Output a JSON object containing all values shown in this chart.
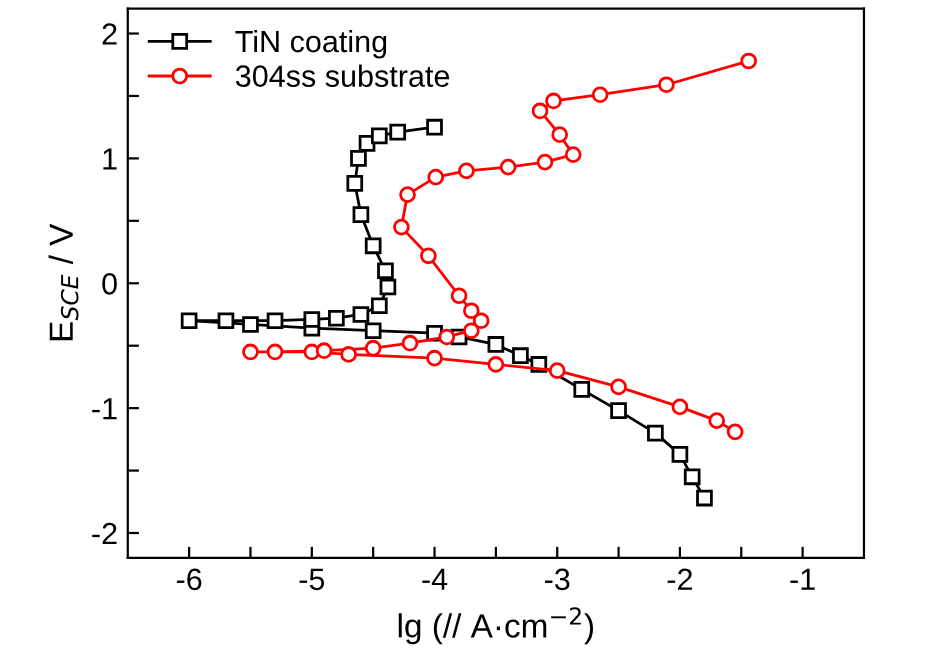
{
  "chart_data": {
    "type": "line",
    "xlabel": "lg (// A·cm$^{−2}$)",
    "ylabel": "E$_{SCE}$ / V",
    "xlim": [
      -6.5,
      -0.5
    ],
    "ylim": [
      -2.2,
      2.2
    ],
    "xticks": [
      -6,
      {
        "value": -5.5,
        "label": null
      },
      -5,
      {
        "value": -4.5,
        "label": null
      },
      -4,
      {
        "value": -3.5,
        "label": null
      },
      -3,
      {
        "value": -2.5,
        "label": null
      },
      -2,
      {
        "value": -1.5,
        "label": null
      },
      -1
    ],
    "yticks": [
      -2,
      {
        "value": -1.5,
        "label": null
      },
      -1,
      {
        "value": -0.5,
        "label": null
      },
      0,
      {
        "value": 0.5,
        "label": null
      },
      1,
      {
        "value": 1.5,
        "label": null
      },
      2
    ],
    "legend": "top left",
    "grid": false,
    "series": [
      {
        "name": "TiN coating",
        "color": "#000000",
        "marker": "square",
        "x": [
          -1.8,
          -1.9,
          -2.0,
          -2.2,
          -2.5,
          -2.8,
          -3.15,
          -3.3,
          -3.5,
          -3.8,
          -4.0,
          -4.5,
          -5.0,
          -5.5,
          -6.0,
          -5.7,
          -5.3,
          -5.0,
          -4.8,
          -4.6,
          -4.45,
          -4.38,
          -4.4,
          -4.5,
          -4.6,
          -4.65,
          -4.62,
          -4.55,
          -4.45,
          -4.3,
          -4.0
        ],
        "values": [
          -1.72,
          -1.55,
          -1.37,
          -1.2,
          -1.02,
          -0.85,
          -0.65,
          -0.58,
          -0.49,
          -0.43,
          -0.4,
          -0.38,
          -0.36,
          -0.33,
          -0.3,
          -0.3,
          -0.3,
          -0.29,
          -0.28,
          -0.25,
          -0.18,
          -0.03,
          0.1,
          0.3,
          0.55,
          0.8,
          1.0,
          1.12,
          1.18,
          1.21,
          1.25
        ]
      },
      {
        "name": "304ss substrate",
        "color": "#ff0000",
        "marker": "circle",
        "x": [
          -1.55,
          -1.7,
          -2.0,
          -2.5,
          -3.0,
          -3.5,
          -4.0,
          -4.7,
          -5.0,
          -5.5,
          -5.3,
          -4.9,
          -4.5,
          -4.2,
          -3.9,
          -3.7,
          -3.62,
          -3.7,
          -3.8,
          -4.05,
          -4.27,
          -4.22,
          -3.99,
          -3.74,
          -3.4,
          -3.1,
          -2.87,
          -2.98,
          -3.14,
          -3.03,
          -2.65,
          -2.11,
          -1.44
        ],
        "values": [
          -1.19,
          -1.1,
          -0.99,
          -0.83,
          -0.7,
          -0.65,
          -0.6,
          -0.57,
          -0.55,
          -0.55,
          -0.55,
          -0.54,
          -0.52,
          -0.48,
          -0.43,
          -0.38,
          -0.3,
          -0.22,
          -0.1,
          0.22,
          0.45,
          0.71,
          0.85,
          0.9,
          0.93,
          0.97,
          1.03,
          1.19,
          1.38,
          1.46,
          1.51,
          1.59,
          1.78
        ]
      }
    ]
  }
}
